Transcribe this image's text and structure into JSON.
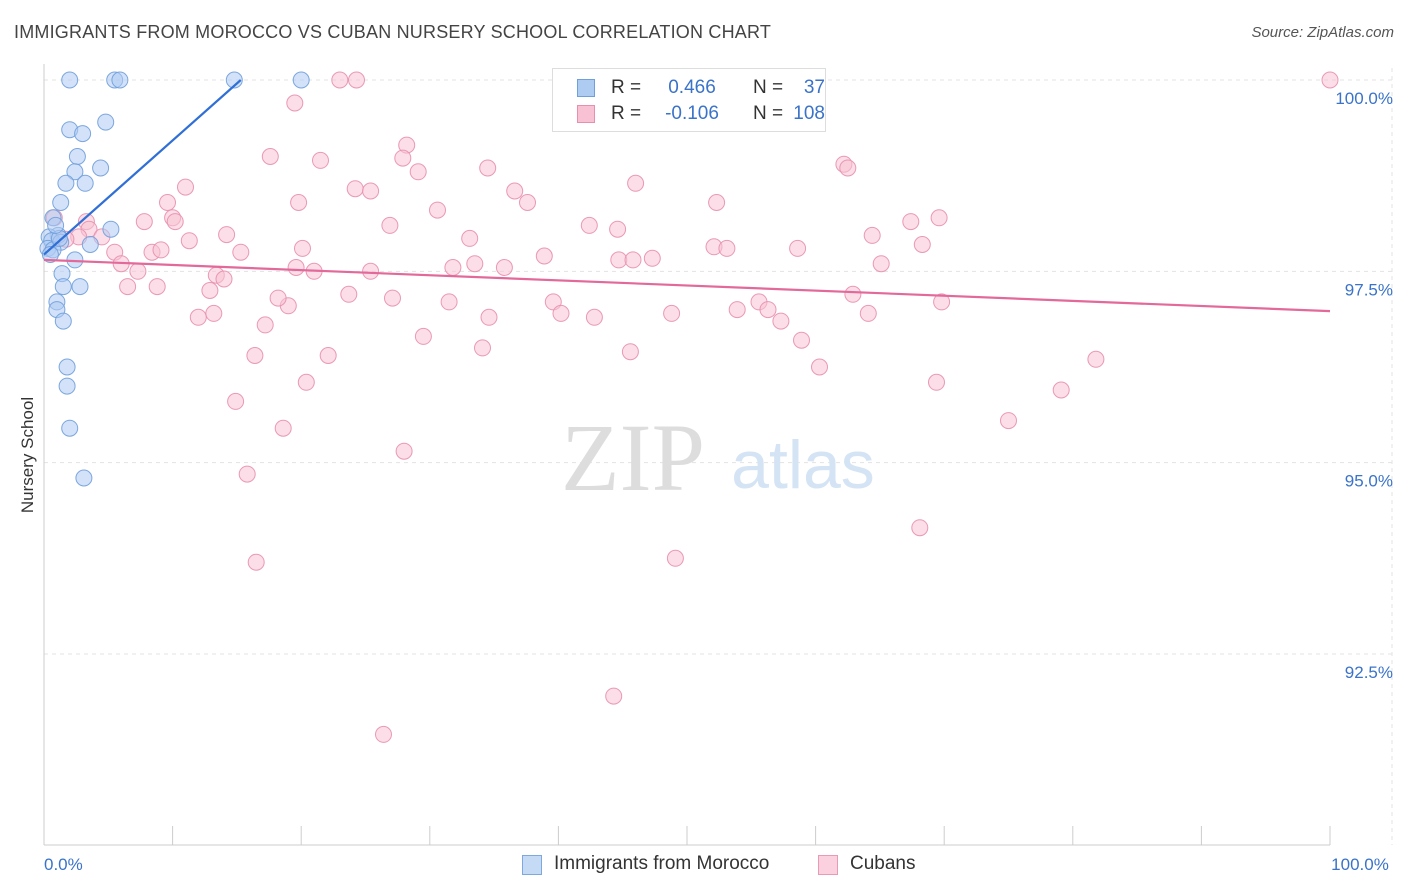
{
  "title": "IMMIGRANTS FROM MOROCCO VS CUBAN NURSERY SCHOOL CORRELATION CHART",
  "source": "Source: ZipAtlas.com",
  "watermark": {
    "zip": "ZIP",
    "atlas": "atlas"
  },
  "legend": {
    "r_label": "R =",
    "n_label": "N =",
    "rows": [
      {
        "r": "0.466",
        "n": "37",
        "fill": "#aecbf2",
        "stroke": "#6f9fdc"
      },
      {
        "r": "-0.106",
        "n": "108",
        "fill": "#f8c2d4",
        "stroke": "#e88fae"
      }
    ]
  },
  "bottom_legend": [
    {
      "label": "Immigrants from Morocco",
      "fill": "#c5dbf5",
      "stroke": "#7ea8de"
    },
    {
      "label": "Cubans",
      "fill": "#fbd0df",
      "stroke": "#e99ab6"
    }
  ],
  "chart_data": {
    "type": "scatter",
    "title": "IMMIGRANTS FROM MOROCCO VS CUBAN NURSERY SCHOOL CORRELATION CHART",
    "xlabel": "",
    "ylabel": "Nursery School",
    "xlim": [
      0,
      100
    ],
    "ylim": [
      90.3,
      100.2
    ],
    "x_tick_labels": [
      {
        "value": 0,
        "label": "0.0%"
      },
      {
        "value": 100,
        "label": "100.0%"
      }
    ],
    "y_ticks": [
      {
        "value": 100,
        "label": "100.0%"
      },
      {
        "value": 97.5,
        "label": "97.5%"
      },
      {
        "value": 95,
        "label": "95.0%"
      },
      {
        "value": 92.5,
        "label": "92.5%"
      }
    ],
    "grid": true,
    "legend_position": "top-center",
    "series": [
      {
        "name": "Immigrants from Morocco",
        "color": "#6f9fdc",
        "fill": "#aecbf2",
        "trend_color": "#2f6fd6",
        "trend": {
          "x": [
            0,
            15.3
          ],
          "y": [
            97.72,
            100.0
          ]
        },
        "points": [
          [
            2.0,
            100.0
          ],
          [
            5.5,
            100.0
          ],
          [
            5.9,
            100.0
          ],
          [
            14.8,
            100.0
          ],
          [
            20.0,
            100.0
          ],
          [
            4.8,
            99.45
          ],
          [
            2.0,
            99.35
          ],
          [
            3.0,
            99.3
          ],
          [
            2.6,
            99.0
          ],
          [
            4.4,
            98.85
          ],
          [
            2.4,
            98.8
          ],
          [
            1.7,
            98.65
          ],
          [
            3.2,
            98.65
          ],
          [
            1.3,
            98.4
          ],
          [
            0.7,
            98.2
          ],
          [
            5.2,
            98.05
          ],
          [
            1.1,
            97.97
          ],
          [
            0.4,
            97.95
          ],
          [
            0.6,
            97.9
          ],
          [
            1.3,
            97.88
          ],
          [
            3.6,
            97.85
          ],
          [
            0.3,
            97.8
          ],
          [
            0.7,
            97.78
          ],
          [
            0.5,
            97.72
          ],
          [
            2.4,
            97.65
          ],
          [
            1.4,
            97.47
          ],
          [
            1.5,
            97.3
          ],
          [
            2.8,
            97.3
          ],
          [
            1.0,
            97.1
          ],
          [
            1.0,
            97.0
          ],
          [
            1.5,
            96.85
          ],
          [
            1.8,
            96.25
          ],
          [
            1.8,
            96.0
          ],
          [
            2.0,
            95.45
          ],
          [
            3.1,
            94.8
          ],
          [
            1.2,
            97.93
          ],
          [
            0.9,
            98.1
          ]
        ]
      },
      {
        "name": "Cubans",
        "color": "#e88fae",
        "fill": "#f8c2d4",
        "trend_color": "#e2699a",
        "trend": {
          "x": [
            0,
            100
          ],
          "y": [
            97.65,
            96.98
          ]
        },
        "points": [
          [
            23.0,
            100.0
          ],
          [
            24.3,
            100.0
          ],
          [
            100.0,
            100.0
          ],
          [
            19.5,
            99.7
          ],
          [
            28.2,
            99.15
          ],
          [
            17.6,
            99.0
          ],
          [
            21.5,
            98.95
          ],
          [
            27.9,
            98.98
          ],
          [
            34.5,
            98.85
          ],
          [
            29.1,
            98.8
          ],
          [
            62.2,
            98.9
          ],
          [
            62.5,
            98.85
          ],
          [
            11.0,
            98.6
          ],
          [
            24.2,
            98.58
          ],
          [
            25.4,
            98.55
          ],
          [
            36.6,
            98.55
          ],
          [
            46.0,
            98.65
          ],
          [
            9.6,
            98.4
          ],
          [
            19.8,
            98.4
          ],
          [
            30.6,
            98.3
          ],
          [
            37.6,
            98.4
          ],
          [
            52.3,
            98.4
          ],
          [
            0.8,
            98.2
          ],
          [
            3.3,
            98.15
          ],
          [
            7.8,
            98.15
          ],
          [
            10.0,
            98.2
          ],
          [
            10.2,
            98.15
          ],
          [
            67.4,
            98.15
          ],
          [
            69.6,
            98.2
          ],
          [
            26.9,
            98.1
          ],
          [
            3.5,
            98.05
          ],
          [
            42.4,
            98.1
          ],
          [
            44.6,
            98.05
          ],
          [
            2.7,
            97.95
          ],
          [
            4.5,
            97.95
          ],
          [
            14.2,
            97.98
          ],
          [
            11.3,
            97.9
          ],
          [
            33.1,
            97.93
          ],
          [
            64.4,
            97.97
          ],
          [
            1.7,
            97.92
          ],
          [
            20.1,
            97.8
          ],
          [
            52.1,
            97.82
          ],
          [
            53.1,
            97.8
          ],
          [
            58.6,
            97.8
          ],
          [
            68.3,
            97.85
          ],
          [
            8.4,
            97.75
          ],
          [
            9.1,
            97.78
          ],
          [
            15.3,
            97.75
          ],
          [
            5.5,
            97.75
          ],
          [
            6.0,
            97.6
          ],
          [
            44.7,
            97.65
          ],
          [
            45.8,
            97.65
          ],
          [
            47.3,
            97.67
          ],
          [
            65.1,
            97.6
          ],
          [
            19.6,
            97.55
          ],
          [
            21.0,
            97.5
          ],
          [
            25.4,
            97.5
          ],
          [
            31.8,
            97.55
          ],
          [
            35.8,
            97.55
          ],
          [
            7.3,
            97.5
          ],
          [
            13.4,
            97.45
          ],
          [
            14.0,
            97.4
          ],
          [
            33.5,
            97.6
          ],
          [
            6.5,
            97.3
          ],
          [
            8.8,
            97.3
          ],
          [
            12.9,
            97.25
          ],
          [
            23.7,
            97.2
          ],
          [
            27.1,
            97.15
          ],
          [
            31.5,
            97.1
          ],
          [
            39.6,
            97.1
          ],
          [
            55.6,
            97.1
          ],
          [
            62.9,
            97.2
          ],
          [
            69.8,
            97.1
          ],
          [
            19.0,
            97.05
          ],
          [
            56.3,
            97.0
          ],
          [
            12.0,
            96.9
          ],
          [
            13.2,
            96.95
          ],
          [
            34.6,
            96.9
          ],
          [
            40.2,
            96.95
          ],
          [
            42.8,
            96.9
          ],
          [
            48.8,
            96.95
          ],
          [
            57.3,
            96.85
          ],
          [
            64.1,
            96.95
          ],
          [
            17.2,
            96.8
          ],
          [
            29.5,
            96.65
          ],
          [
            58.9,
            96.6
          ],
          [
            34.1,
            96.5
          ],
          [
            45.6,
            96.45
          ],
          [
            16.4,
            96.4
          ],
          [
            22.1,
            96.4
          ],
          [
            81.8,
            96.35
          ],
          [
            60.3,
            96.25
          ],
          [
            20.4,
            96.05
          ],
          [
            69.4,
            96.05
          ],
          [
            79.1,
            95.95
          ],
          [
            14.9,
            95.8
          ],
          [
            75.0,
            95.55
          ],
          [
            18.6,
            95.45
          ],
          [
            28.0,
            95.15
          ],
          [
            15.8,
            94.85
          ],
          [
            68.1,
            94.15
          ],
          [
            49.1,
            93.75
          ],
          [
            16.5,
            93.7
          ],
          [
            44.3,
            91.95
          ],
          [
            26.4,
            91.45
          ],
          [
            18.2,
            97.15
          ],
          [
            53.9,
            97.0
          ],
          [
            38.9,
            97.7
          ]
        ]
      }
    ]
  }
}
